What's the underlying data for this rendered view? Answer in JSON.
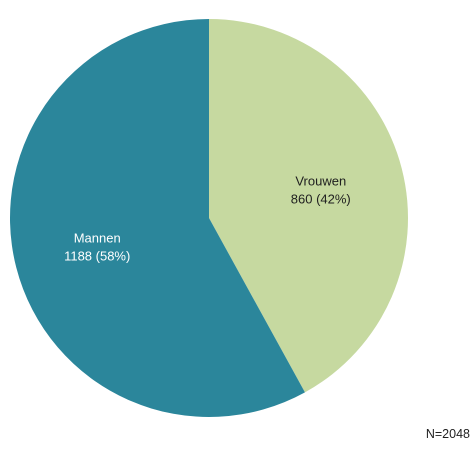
{
  "chart_data": {
    "type": "pie",
    "categories": [
      "Vrouwen",
      "Mannen"
    ],
    "values": [
      860,
      1188
    ],
    "percent_labels": [
      "860 (42%)",
      "1188 (58%)"
    ],
    "colors": [
      "#c6d9a0",
      "#2b869b"
    ],
    "start_angle_deg": 0,
    "direction": "clockwise",
    "title": "",
    "legend": "none"
  },
  "footnote": "N=2048"
}
